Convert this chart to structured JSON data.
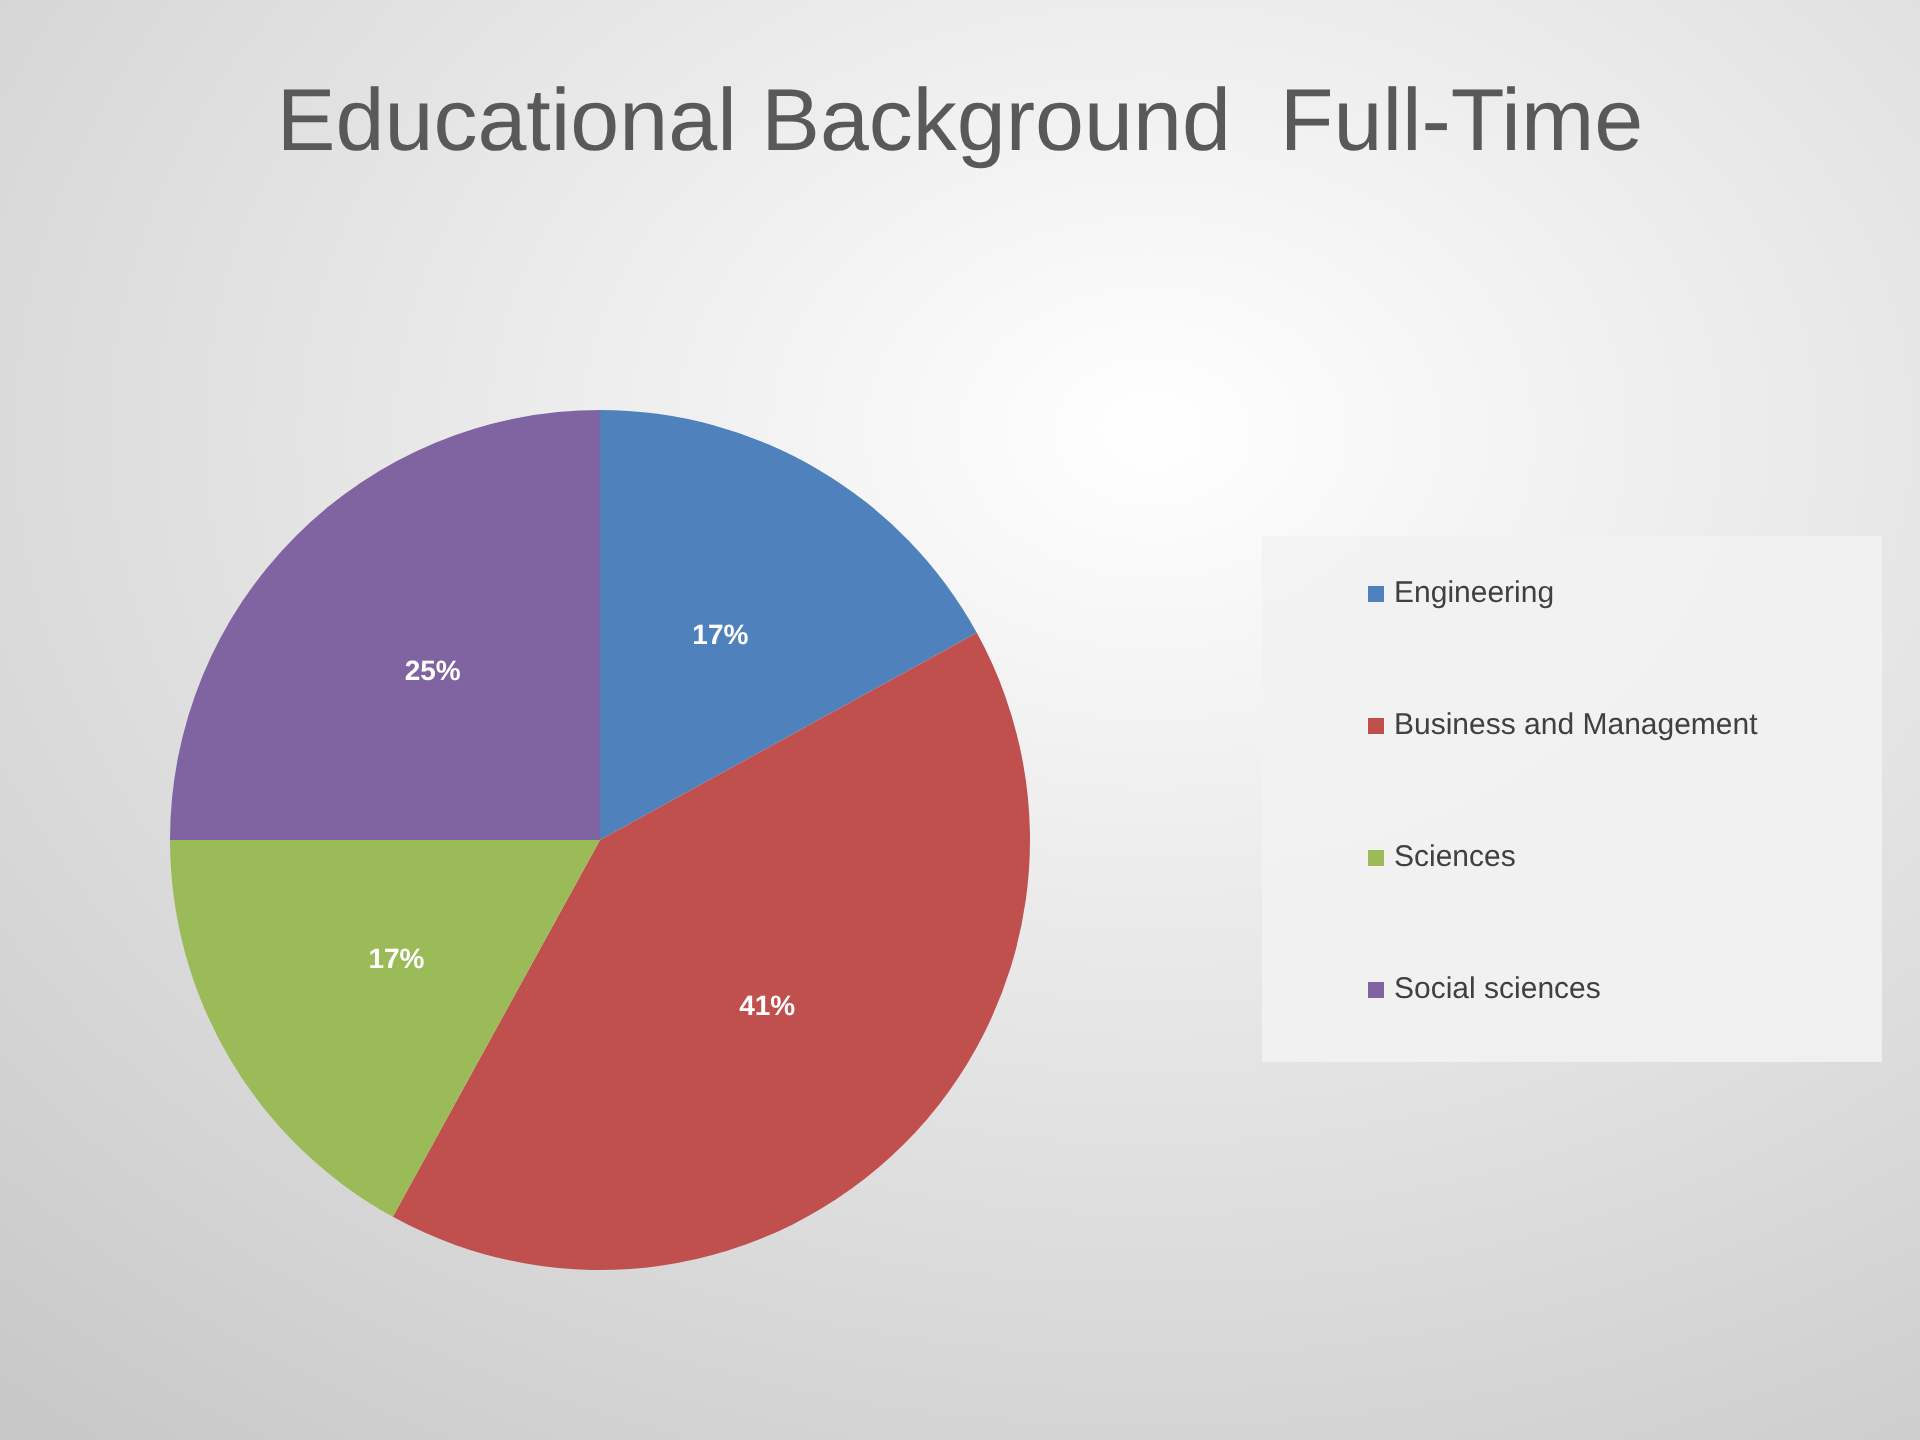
{
  "chart_data": {
    "type": "pie",
    "title": "Educational Background  Full-Time",
    "categories": [
      "Engineering",
      "Business and Management",
      "Sciences",
      "Social sciences"
    ],
    "values": [
      17,
      41,
      17,
      25
    ],
    "colors": [
      "#4f81bd",
      "#c0504d",
      "#9bbb59",
      "#8064a2"
    ],
    "value_labels": [
      "17%",
      "41%",
      "17%",
      "25%"
    ],
    "legend": "right"
  }
}
